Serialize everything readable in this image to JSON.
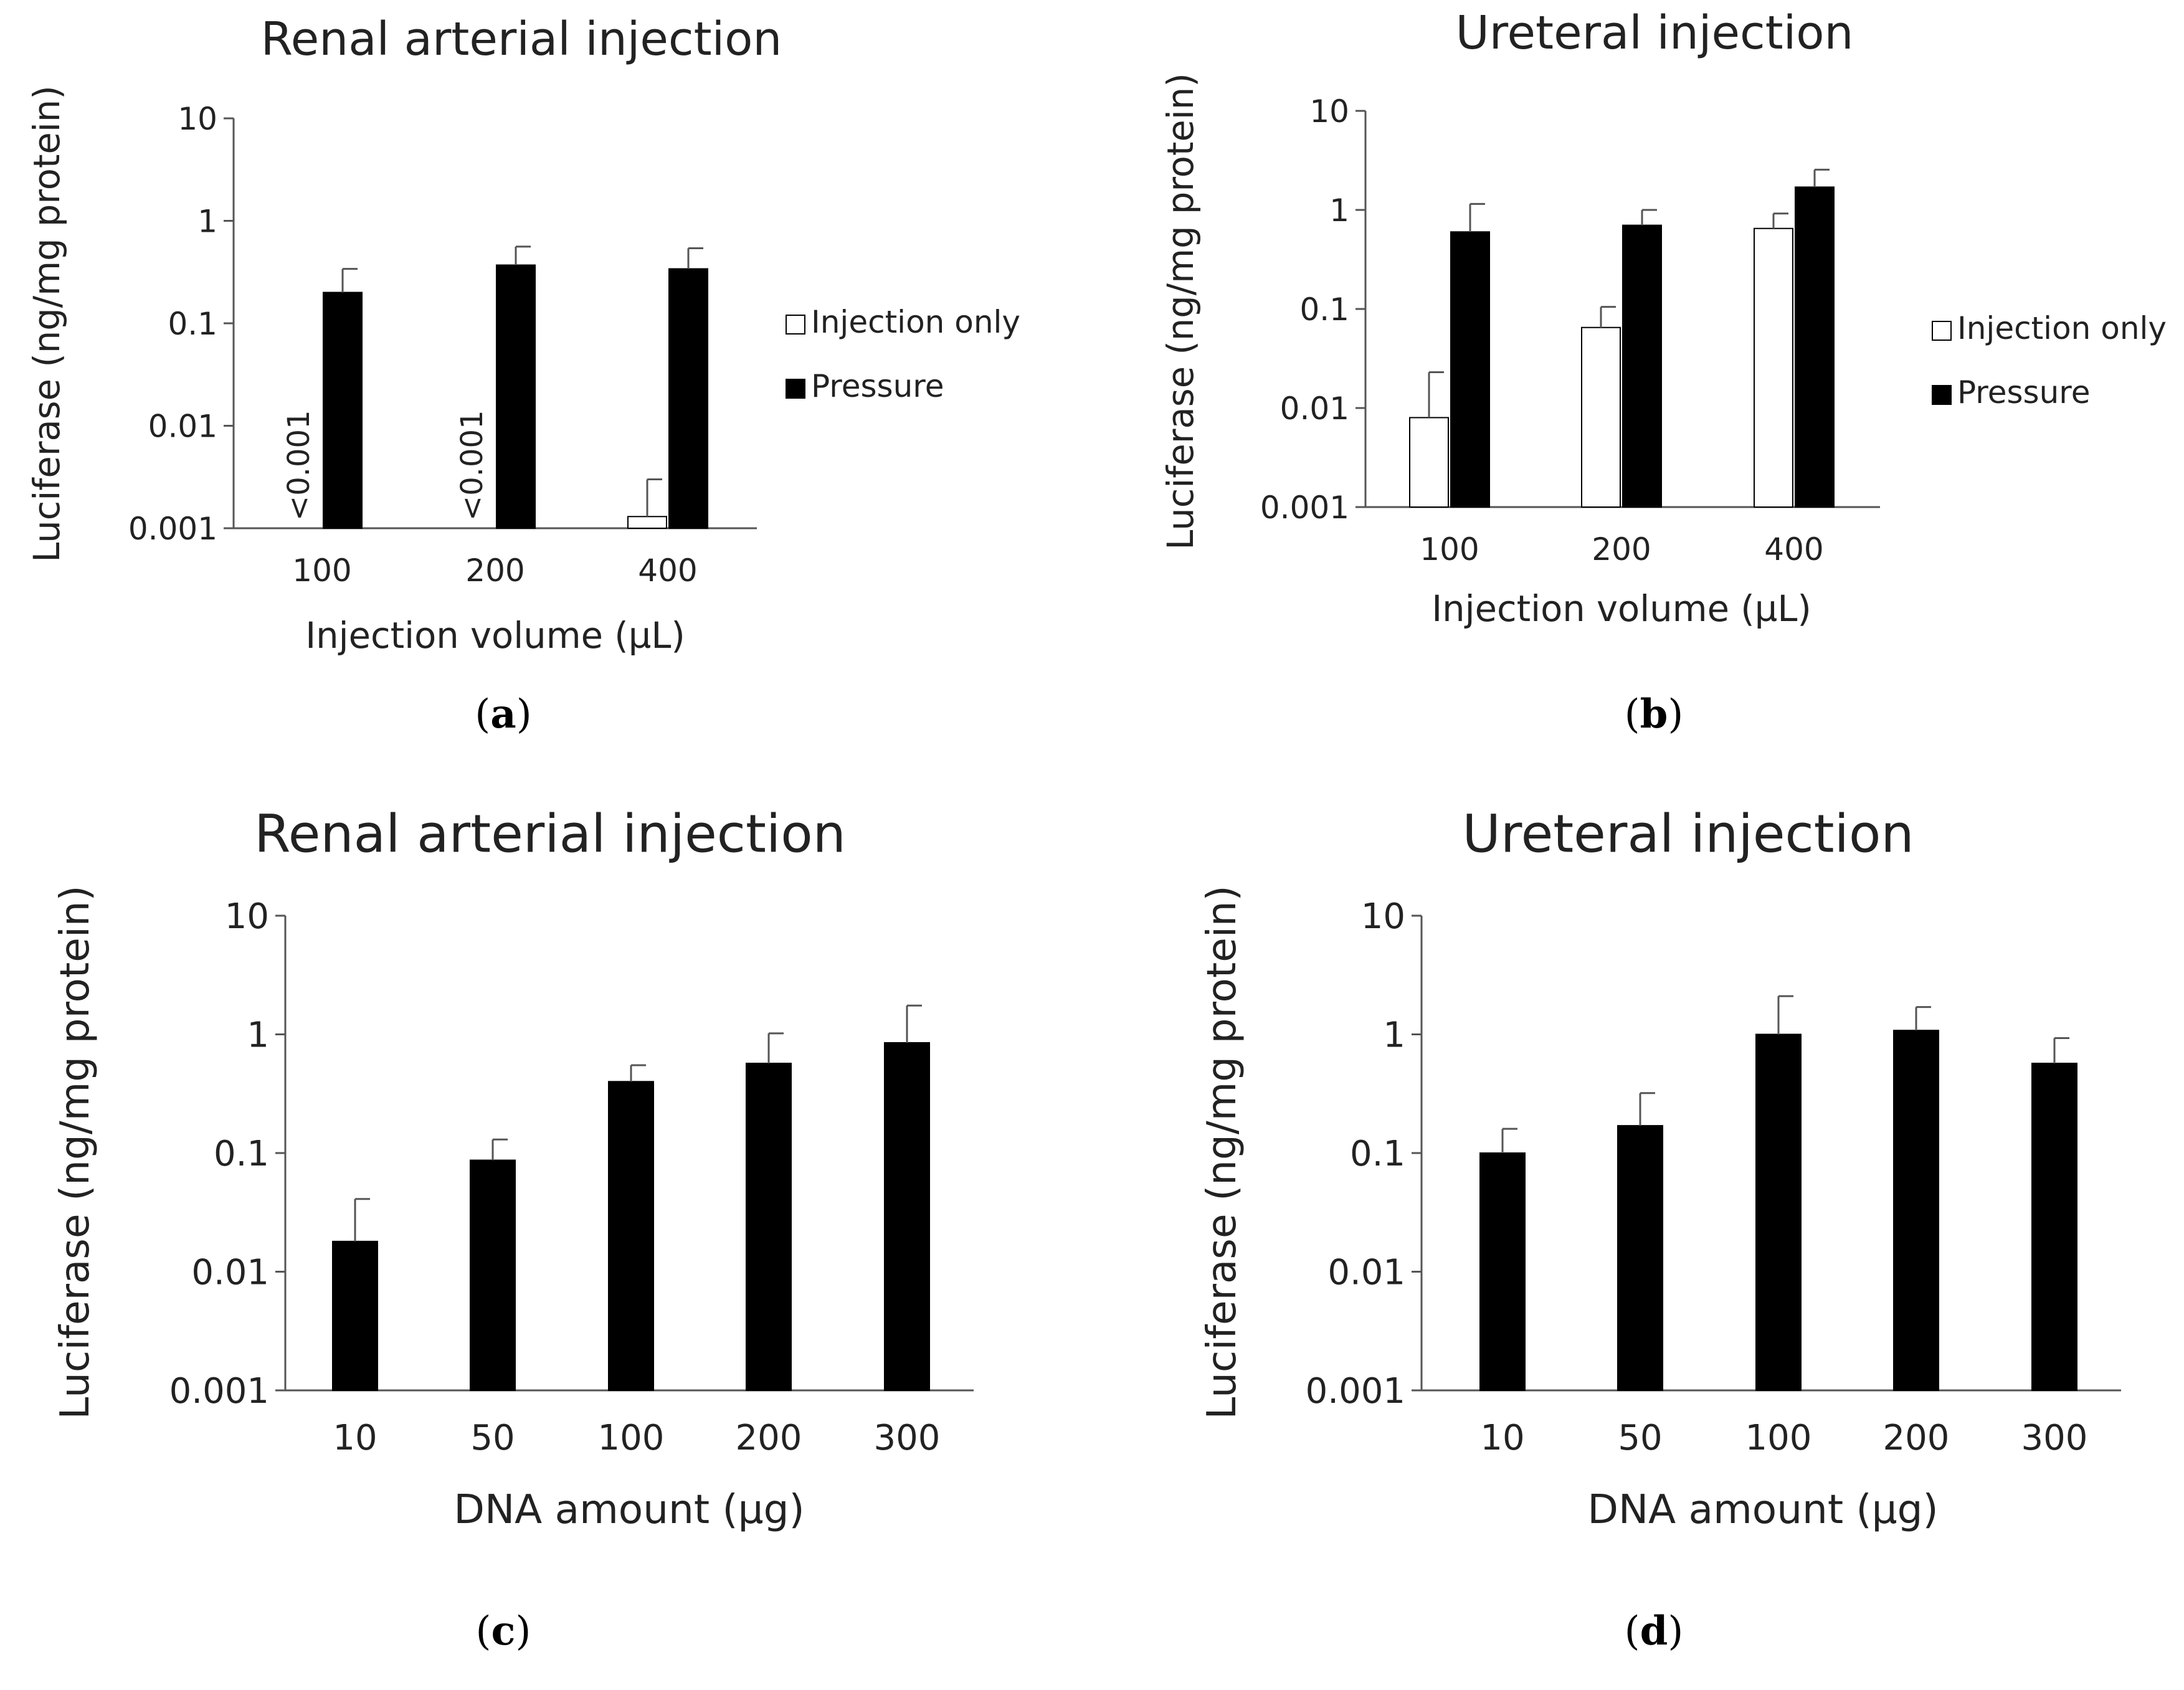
{
  "colors": {
    "pressure": "#000000",
    "injection_only": "#ffffff",
    "bar_outline": "#000000",
    "axis": "#555555",
    "text": "#222222"
  },
  "chart_data": [
    {
      "panel_label": "a",
      "type": "bar",
      "scale": "log",
      "title": "Renal arterial injection",
      "xlabel": "Injection volume (µL)",
      "ylabel": "Luciferase (ng/mg protein)",
      "ylim": [
        0.001,
        10
      ],
      "yticks": [
        "0.001",
        "0.01",
        "0.1",
        "1",
        "10"
      ],
      "categories": [
        "100",
        "200",
        "400"
      ],
      "legend": "right",
      "series": [
        {
          "name": "Injection only",
          "color_key": "injection_only",
          "values": [
            null,
            null,
            0.0013
          ],
          "errors": [
            null,
            null,
            0.003
          ],
          "notes": [
            "<0.001",
            "<0.001",
            ""
          ]
        },
        {
          "name": "Pressure",
          "color_key": "pressure",
          "values": [
            0.2,
            0.37,
            0.34
          ],
          "errors": [
            0.34,
            0.56,
            0.54
          ],
          "notes": [
            "",
            "",
            ""
          ]
        }
      ]
    },
    {
      "panel_label": "b",
      "type": "bar",
      "scale": "log",
      "title": "Ureteral injection",
      "xlabel": "Injection volume (µL)",
      "ylabel": "Luciferase (ng/mg protein)",
      "ylim": [
        0.001,
        10
      ],
      "yticks": [
        "0.001",
        "0.01",
        "0.1",
        "1",
        "10"
      ],
      "categories": [
        "100",
        "200",
        "400"
      ],
      "legend": "right",
      "series": [
        {
          "name": "Injection only",
          "color_key": "injection_only",
          "values": [
            0.008,
            0.065,
            0.65
          ],
          "errors": [
            0.023,
            0.105,
            0.92
          ],
          "notes": [
            "",
            "",
            ""
          ]
        },
        {
          "name": "Pressure",
          "color_key": "pressure",
          "values": [
            0.6,
            0.7,
            1.7
          ],
          "errors": [
            1.15,
            1.0,
            2.55
          ],
          "notes": [
            "",
            "",
            ""
          ]
        }
      ]
    },
    {
      "panel_label": "c",
      "type": "bar",
      "scale": "log",
      "title": "Renal arterial injection",
      "xlabel": "DNA amount (µg)",
      "ylabel": "Luciferase (ng/mg protein)",
      "ylim": [
        0.001,
        10
      ],
      "yticks": [
        "0.001",
        "0.01",
        "0.1",
        "1",
        "10"
      ],
      "categories": [
        "10",
        "50",
        "100",
        "200",
        "300"
      ],
      "legend": "none",
      "series": [
        {
          "name": "",
          "color_key": "pressure",
          "values": [
            0.018,
            0.087,
            0.4,
            0.57,
            0.85
          ],
          "errors": [
            0.041,
            0.13,
            0.55,
            1.02,
            1.75
          ],
          "notes": [
            "",
            "",
            "",
            "",
            ""
          ]
        }
      ]
    },
    {
      "panel_label": "d",
      "type": "bar",
      "scale": "log",
      "title": "Ureteral injection",
      "xlabel": "DNA amount (µg)",
      "ylabel": "Luciferase (ng/mg protein)",
      "ylim": [
        0.001,
        10
      ],
      "yticks": [
        "0.001",
        "0.01",
        "0.1",
        "1",
        "10"
      ],
      "categories": [
        "10",
        "50",
        "100",
        "200",
        "300"
      ],
      "legend": "none",
      "series": [
        {
          "name": "",
          "color_key": "pressure",
          "values": [
            0.1,
            0.17,
            1.0,
            1.08,
            0.57
          ],
          "errors": [
            0.16,
            0.32,
            2.1,
            1.7,
            0.93
          ],
          "notes": [
            "",
            "",
            "",
            "",
            ""
          ]
        }
      ]
    }
  ]
}
